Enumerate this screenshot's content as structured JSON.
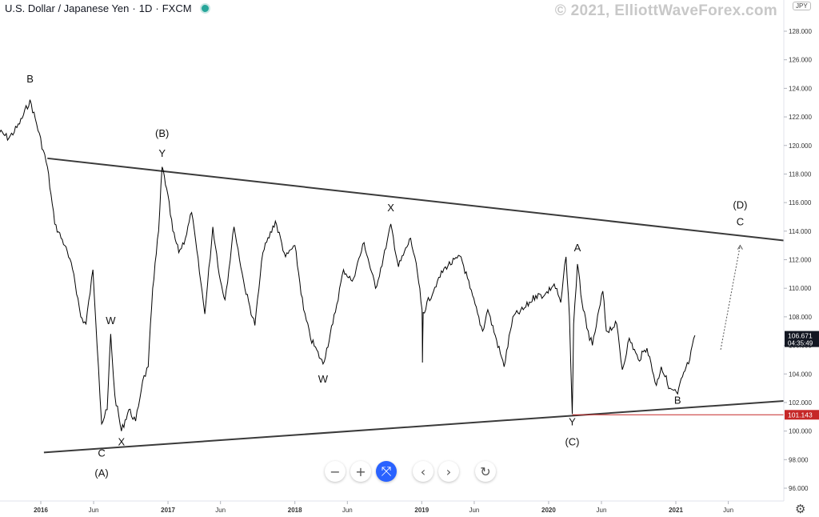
{
  "header": {
    "symbol": "U.S. Dollar / Japanese Yen",
    "interval": "1D",
    "exchange": "FXCM",
    "watermark": "© 2021, ElliottWaveForex.com",
    "currency_badge": "JPY"
  },
  "toolbar": {
    "buttons": [
      "minus-icon",
      "plus-icon",
      "reset-zoom-icon",
      "chevron-left-icon",
      "chevron-right-icon",
      "refresh-icon"
    ],
    "zoom_out": "−",
    "zoom_in": "+",
    "reset": "⤧",
    "back": "‹",
    "forward": "›",
    "replay": "↻"
  },
  "colors": {
    "price_line": "#000000",
    "trendline": "#3a3a3a",
    "current_price_bg": "#131722",
    "level_line": "#c62828"
  },
  "chart_data": {
    "type": "line",
    "title": "U.S. Dollar / Japanese Yen · 1D · FXCM",
    "ylim": [
      95,
      130
    ],
    "xlim": [
      "2015-09-01",
      "2021-12-31"
    ],
    "y_ticks": [
      "96.000",
      "98.000",
      "100.000",
      "102.000",
      "104.000",
      "106.000",
      "108.000",
      "110.000",
      "112.000",
      "114.000",
      "116.000",
      "118.000",
      "120.000",
      "122.000",
      "124.000",
      "126.000",
      "128.000"
    ],
    "x_ticks": [
      {
        "label": "2016",
        "date": "2016-01-01"
      },
      {
        "label": "Jun",
        "date": "2016-06-01"
      },
      {
        "label": "2017",
        "date": "2017-01-01"
      },
      {
        "label": "Jun",
        "date": "2017-06-01"
      },
      {
        "label": "2018",
        "date": "2018-01-01"
      },
      {
        "label": "Jun",
        "date": "2018-06-01"
      },
      {
        "label": "2019",
        "date": "2019-01-01"
      },
      {
        "label": "Jun",
        "date": "2019-06-01"
      },
      {
        "label": "2020",
        "date": "2020-01-01"
      },
      {
        "label": "Jun",
        "date": "2020-06-01"
      },
      {
        "label": "2021",
        "date": "2021-01-01"
      },
      {
        "label": "Jun",
        "date": "2021-06-01"
      }
    ],
    "series": [
      {
        "points": [
          [
            "2015-09-01",
            121.0
          ],
          [
            "2015-10-01",
            120.5
          ],
          [
            "2015-11-01",
            121.5
          ],
          [
            "2015-12-01",
            123.2
          ],
          [
            "2015-12-20",
            121.5
          ],
          [
            "2016-01-20",
            118.5
          ],
          [
            "2016-02-10",
            114.5
          ],
          [
            "2016-03-10",
            113.0
          ],
          [
            "2016-04-05",
            111.0
          ],
          [
            "2016-04-25",
            108.0
          ],
          [
            "2016-05-10",
            107.5
          ],
          [
            "2016-05-30",
            111.3
          ],
          [
            "2016-06-15",
            104.5
          ],
          [
            "2016-06-24",
            100.5
          ],
          [
            "2016-07-10",
            101.5
          ],
          [
            "2016-07-20",
            106.8
          ],
          [
            "2016-08-01",
            102.5
          ],
          [
            "2016-08-20",
            100.0
          ],
          [
            "2016-09-10",
            101.5
          ],
          [
            "2016-09-30",
            100.7
          ],
          [
            "2016-10-20",
            103.5
          ],
          [
            "2016-11-05",
            104.5
          ],
          [
            "2016-11-18",
            110.0
          ],
          [
            "2016-12-05",
            114.0
          ],
          [
            "2016-12-15",
            118.5
          ],
          [
            "2016-12-28",
            117.0
          ],
          [
            "2017-01-15",
            114.0
          ],
          [
            "2017-02-01",
            112.5
          ],
          [
            "2017-02-20",
            113.5
          ],
          [
            "2017-03-10",
            115.3
          ],
          [
            "2017-04-05",
            110.5
          ],
          [
            "2017-04-17",
            108.2
          ],
          [
            "2017-05-10",
            114.3
          ],
          [
            "2017-06-01",
            110.5
          ],
          [
            "2017-06-14",
            109.2
          ],
          [
            "2017-07-10",
            114.3
          ],
          [
            "2017-08-10",
            110.0
          ],
          [
            "2017-09-08",
            107.4
          ],
          [
            "2017-10-01",
            112.5
          ],
          [
            "2017-11-06",
            114.7
          ],
          [
            "2017-12-05",
            112.2
          ],
          [
            "2018-01-01",
            113.0
          ],
          [
            "2018-01-26",
            108.5
          ],
          [
            "2018-02-15",
            106.5
          ],
          [
            "2018-03-23",
            104.7
          ],
          [
            "2018-04-20",
            107.5
          ],
          [
            "2018-05-21",
            111.3
          ],
          [
            "2018-06-15",
            110.5
          ],
          [
            "2018-07-19",
            113.2
          ],
          [
            "2018-08-21",
            110.0
          ],
          [
            "2018-09-20",
            112.8
          ],
          [
            "2018-10-04",
            114.5
          ],
          [
            "2018-10-26",
            111.5
          ],
          [
            "2018-11-30",
            113.5
          ],
          [
            "2018-12-20",
            111.0
          ],
          [
            "2019-01-02",
            108.5
          ],
          [
            "2019-01-03",
            104.8
          ],
          [
            "2019-01-05",
            108.3
          ],
          [
            "2019-02-15",
            110.5
          ],
          [
            "2019-03-10",
            111.5
          ],
          [
            "2019-04-24",
            112.2
          ],
          [
            "2019-05-20",
            110.0
          ],
          [
            "2019-06-25",
            107.0
          ],
          [
            "2019-07-10",
            108.5
          ],
          [
            "2019-08-26",
            104.5
          ],
          [
            "2019-09-20",
            108.0
          ],
          [
            "2019-10-20",
            108.5
          ],
          [
            "2019-11-25",
            109.5
          ],
          [
            "2019-12-20",
            109.5
          ],
          [
            "2020-01-17",
            110.3
          ],
          [
            "2020-02-05",
            109.0
          ],
          [
            "2020-02-20",
            112.2
          ],
          [
            "2020-03-01",
            108.0
          ],
          [
            "2020-03-09",
            101.2
          ],
          [
            "2020-03-13",
            107.5
          ],
          [
            "2020-03-24",
            111.7
          ],
          [
            "2020-04-06",
            109.0
          ],
          [
            "2020-04-20",
            107.2
          ],
          [
            "2020-05-06",
            106.0
          ],
          [
            "2020-06-05",
            109.8
          ],
          [
            "2020-06-15",
            107.0
          ],
          [
            "2020-07-15",
            107.5
          ],
          [
            "2020-07-31",
            104.3
          ],
          [
            "2020-08-20",
            106.5
          ],
          [
            "2020-09-15",
            105.0
          ],
          [
            "2020-10-10",
            105.8
          ],
          [
            "2020-11-06",
            103.2
          ],
          [
            "2020-11-20",
            104.5
          ],
          [
            "2020-12-15",
            103.0
          ],
          [
            "2021-01-06",
            102.6
          ],
          [
            "2021-01-20",
            103.8
          ],
          [
            "2021-02-10",
            105.0
          ],
          [
            "2021-02-25",
            106.7
          ]
        ]
      }
    ],
    "trendlines": [
      {
        "name": "upper",
        "from": [
          "2016-01-20",
          119.1
        ],
        "to": [
          "2021-12-31",
          113.2
        ]
      },
      {
        "name": "lower",
        "from": [
          "2016-01-10",
          98.5
        ],
        "to": [
          "2021-12-31",
          102.2
        ]
      },
      {
        "name": "projection",
        "from": [
          "2021-05-10",
          105.7
        ],
        "to": [
          "2021-07-05",
          113.0
        ]
      },
      {
        "name": "level",
        "from": [
          "2020-03-09",
          101.14
        ],
        "to": [
          "2021-12-31",
          101.14
        ]
      }
    ],
    "wave_labels": [
      {
        "text": "B",
        "date": "2015-12-01",
        "price": 124.4
      },
      {
        "text": "C",
        "date": "2016-06-24",
        "price": 98.2
      },
      {
        "text": "(A)",
        "date": "2016-06-24",
        "price": 96.8
      },
      {
        "text": "W",
        "date": "2016-07-20",
        "price": 107.5
      },
      {
        "text": "X",
        "date": "2016-08-20",
        "price": 99.0
      },
      {
        "text": "(B)",
        "date": "2016-12-15",
        "price": 120.6
      },
      {
        "text": "Y",
        "date": "2016-12-15",
        "price": 119.2
      },
      {
        "text": "W",
        "date": "2018-03-23",
        "price": 103.4
      },
      {
        "text": "X",
        "date": "2018-10-04",
        "price": 115.4
      },
      {
        "text": "A",
        "date": "2020-03-24",
        "price": 112.6
      },
      {
        "text": "Y",
        "date": "2020-03-09",
        "price": 100.4
      },
      {
        "text": "(C)",
        "date": "2020-03-09",
        "price": 99.0
      },
      {
        "text": "B",
        "date": "2021-01-06",
        "price": 101.9
      },
      {
        "text": "(D)",
        "date": "2021-07-05",
        "price": 115.6
      },
      {
        "text": "C",
        "date": "2021-07-05",
        "price": 114.4
      }
    ],
    "price_labels": [
      {
        "value": "106.671",
        "sub": "04:35:49",
        "price": 106.67
      },
      {
        "value": "101.143",
        "price": 101.14
      }
    ]
  }
}
